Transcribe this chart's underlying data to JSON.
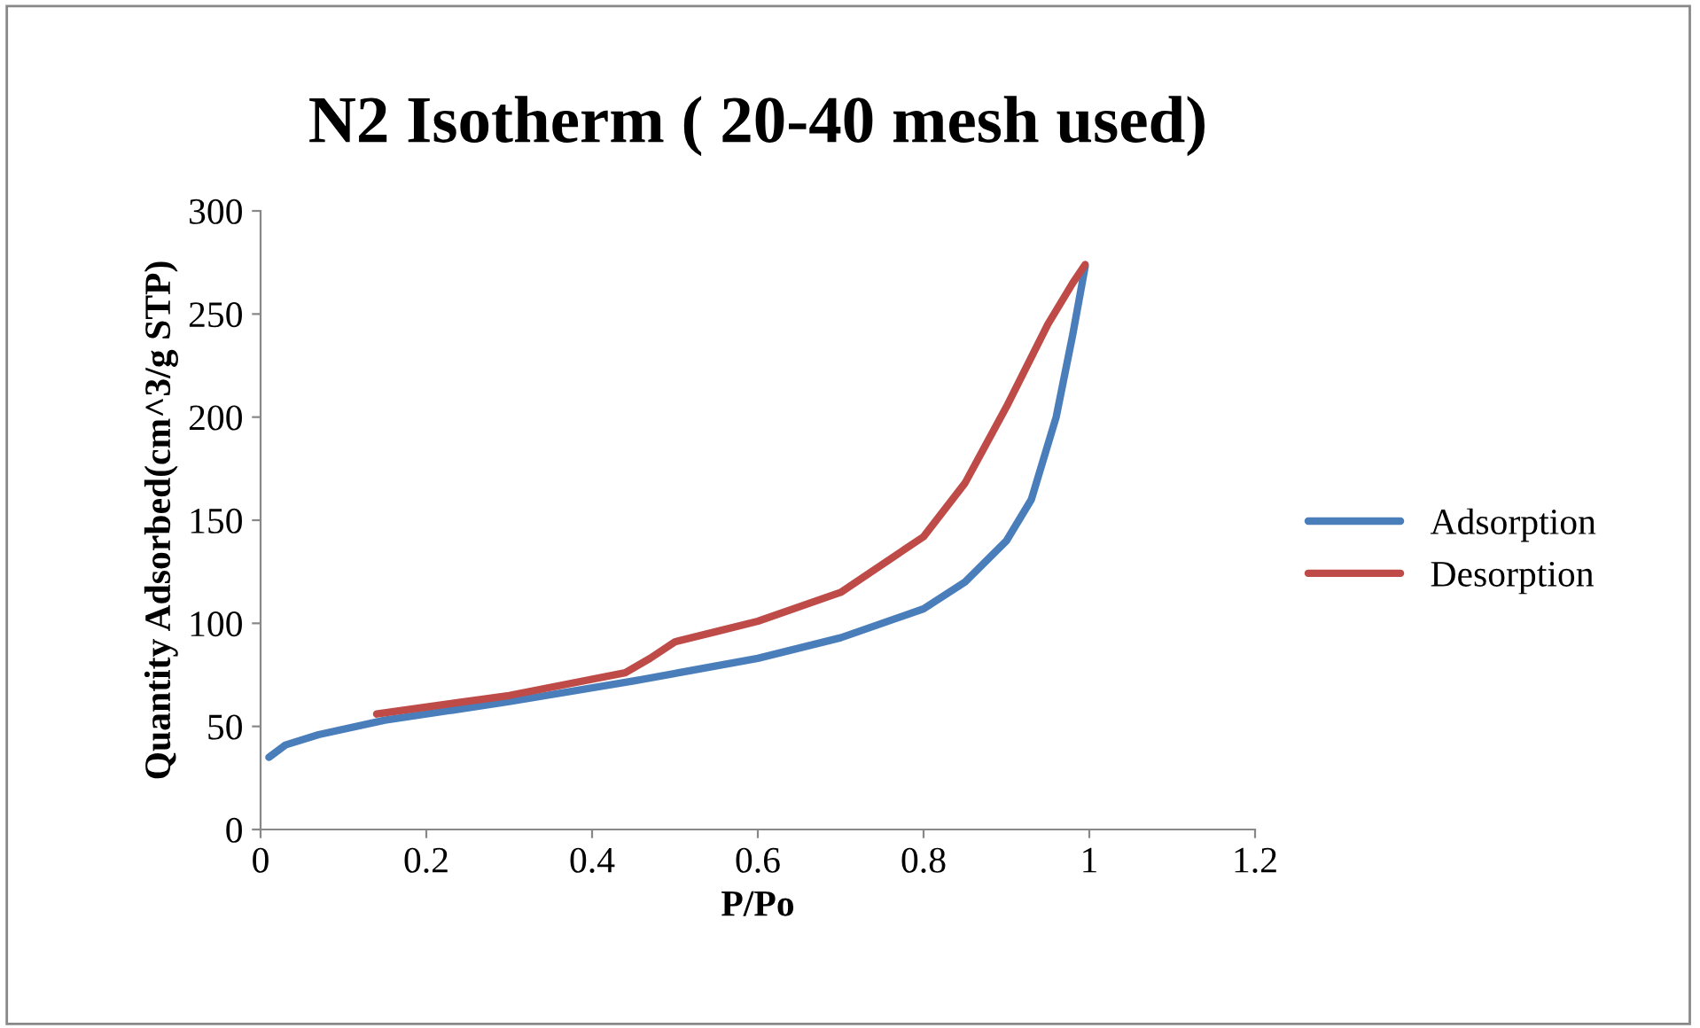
{
  "chart_data": {
    "type": "line",
    "title": "N2 Isotherm ( 20-40 mesh used)",
    "xlabel": "P/Po",
    "ylabel": "Quantity Adsorbed(cm^3/g STP)",
    "xlim": [
      0,
      1.2
    ],
    "xticks": [
      0,
      0.2,
      0.4,
      0.6,
      0.8,
      1,
      1.2
    ],
    "ylim": [
      0,
      300
    ],
    "yticks": [
      0,
      50,
      100,
      150,
      200,
      250,
      300
    ],
    "grid": false,
    "legend": "right",
    "marker": "none",
    "line_style": "solid",
    "series": [
      {
        "name": "Adsorption",
        "color": "#4a7ebb",
        "x": [
          0.01,
          0.03,
          0.07,
          0.15,
          0.3,
          0.45,
          0.6,
          0.7,
          0.8,
          0.85,
          0.9,
          0.93,
          0.96,
          0.98,
          0.995
        ],
        "values": [
          35,
          41,
          46,
          53,
          62,
          72,
          83,
          93,
          107,
          120,
          140,
          160,
          200,
          240,
          273
        ]
      },
      {
        "name": "Desorption",
        "color": "#be4b48",
        "x": [
          0.14,
          0.3,
          0.44,
          0.47,
          0.5,
          0.55,
          0.6,
          0.7,
          0.8,
          0.85,
          0.9,
          0.95,
          0.98,
          0.995
        ],
        "values": [
          56,
          65,
          76,
          83,
          91,
          96,
          101,
          115,
          142,
          168,
          205,
          245,
          265,
          274
        ]
      }
    ]
  }
}
